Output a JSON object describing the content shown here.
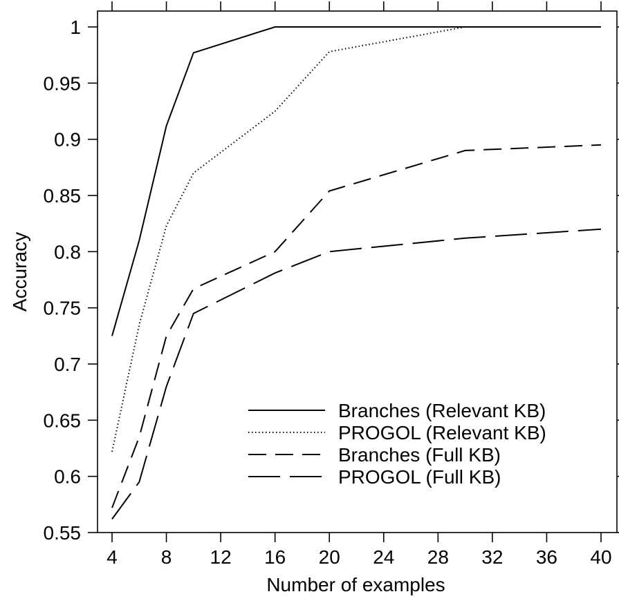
{
  "chart_data": {
    "type": "line",
    "title": "",
    "xlabel": "Number of examples",
    "ylabel": "Accuracy",
    "xlim": [
      4,
      40
    ],
    "ylim": [
      0.55,
      1.0
    ],
    "xticks": [
      4,
      8,
      12,
      16,
      20,
      24,
      28,
      32,
      36,
      40
    ],
    "xtick_labels": [
      "4",
      "8",
      "12",
      "16",
      "20",
      "24",
      "28",
      "32",
      "36",
      "40"
    ],
    "yticks": [
      0.55,
      0.6,
      0.65,
      0.7,
      0.75,
      0.8,
      0.85,
      0.9,
      0.95,
      1.0
    ],
    "ytick_labels": [
      "0.55",
      "0.6",
      "0.65",
      "0.7",
      "0.75",
      "0.8",
      "0.85",
      "0.9",
      "0.95",
      "1"
    ],
    "grid": false,
    "legend_position": "bottom-right",
    "series": [
      {
        "name": "Branches (Relevant KB)",
        "dash": "solid",
        "x": [
          4,
          6,
          8,
          10,
          16,
          20,
          30,
          40
        ],
        "y": [
          0.725,
          0.81,
          0.912,
          0.977,
          1.0,
          1.0,
          1.0,
          1.0
        ]
      },
      {
        "name": "PROGOL (Relevant KB)",
        "dash": "dotted",
        "x": [
          4,
          6,
          8,
          10,
          16,
          20,
          30,
          40
        ],
        "y": [
          0.622,
          0.735,
          0.823,
          0.87,
          0.925,
          0.978,
          1.0,
          1.0
        ]
      },
      {
        "name": "Branches (Full KB)",
        "dash": "dashed",
        "x": [
          4,
          6,
          8,
          10,
          16,
          20,
          30,
          40
        ],
        "y": [
          0.572,
          0.635,
          0.725,
          0.767,
          0.8,
          0.854,
          0.89,
          0.895
        ]
      },
      {
        "name": "PROGOL (Full KB)",
        "dash": "longdash",
        "x": [
          4,
          6,
          8,
          10,
          16,
          20,
          30,
          40
        ],
        "y": [
          0.562,
          0.595,
          0.68,
          0.745,
          0.781,
          0.8,
          0.812,
          0.82
        ]
      }
    ]
  }
}
